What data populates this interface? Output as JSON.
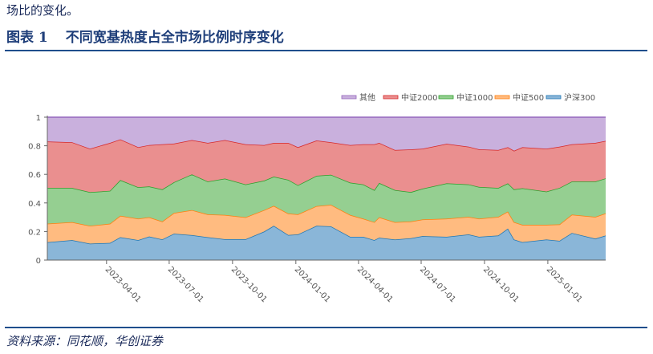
{
  "header": {
    "intro_text": "场比的变化。",
    "figure_label": "图表 1",
    "figure_title": "不同宽基热度占全市场比例时序变化"
  },
  "footer": {
    "source": "资料来源：同花顺，华创证券"
  },
  "chart_data": {
    "type": "area",
    "stacked": true,
    "title": "",
    "xlabel": "",
    "ylabel": "",
    "ylim": [
      0,
      1
    ],
    "yticks": [
      "0",
      "0.2",
      "0.4",
      "0.6",
      "0.8",
      "1"
    ],
    "xticks": [
      "2023-04-01",
      "2023-07-01",
      "2023-10-01",
      "2024-01-01",
      "2024-04-01",
      "2024-07-01",
      "2024-10-01",
      "2025-01-01"
    ],
    "xrange": [
      "2023-01-05",
      "2025-03-26"
    ],
    "legend_position": "top-right",
    "grid": false,
    "x": [
      "2023-01-05",
      "2023-02-10",
      "2023-03-08",
      "2023-04-06",
      "2023-04-21",
      "2023-05-17",
      "2023-06-02",
      "2023-06-21",
      "2023-07-08",
      "2023-08-03",
      "2023-08-26",
      "2023-09-20",
      "2023-10-20",
      "2023-11-16",
      "2023-11-30",
      "2023-12-21",
      "2024-01-04",
      "2024-01-31",
      "2024-02-21",
      "2024-03-20",
      "2024-04-08",
      "2024-04-24",
      "2024-05-01",
      "2024-05-24",
      "2024-06-16",
      "2024-07-03",
      "2024-08-07",
      "2024-09-08",
      "2024-09-23",
      "2024-10-21",
      "2024-11-04",
      "2024-11-13",
      "2024-11-25",
      "2024-12-30",
      "2025-01-18",
      "2025-02-05",
      "2025-03-11",
      "2025-03-26"
    ],
    "series": [
      {
        "name": "沪深300",
        "color": "#1f77b4",
        "fill": "#8ab6d8",
        "values": [
          0.125,
          0.14,
          0.115,
          0.12,
          0.16,
          0.14,
          0.165,
          0.145,
          0.185,
          0.175,
          0.16,
          0.146,
          0.146,
          0.2,
          0.24,
          0.176,
          0.18,
          0.24,
          0.236,
          0.163,
          0.163,
          0.14,
          0.157,
          0.144,
          0.153,
          0.168,
          0.163,
          0.18,
          0.163,
          0.172,
          0.22,
          0.144,
          0.126,
          0.144,
          0.135,
          0.19,
          0.15,
          0.172
        ]
      },
      {
        "name": "中证500",
        "color": "#ff7f0e",
        "fill": "#ffbb80",
        "values": [
          0.13,
          0.125,
          0.125,
          0.135,
          0.15,
          0.15,
          0.135,
          0.125,
          0.145,
          0.175,
          0.16,
          0.17,
          0.154,
          0.15,
          0.14,
          0.15,
          0.14,
          0.138,
          0.151,
          0.153,
          0.127,
          0.126,
          0.143,
          0.122,
          0.117,
          0.116,
          0.127,
          0.123,
          0.127,
          0.131,
          0.12,
          0.122,
          0.121,
          0.103,
          0.115,
          0.128,
          0.153,
          0.155
        ]
      },
      {
        "name": "中证1000",
        "color": "#2ca02c",
        "fill": "#95cf91",
        "values": [
          0.25,
          0.24,
          0.235,
          0.23,
          0.25,
          0.22,
          0.215,
          0.225,
          0.215,
          0.25,
          0.23,
          0.254,
          0.23,
          0.206,
          0.204,
          0.236,
          0.204,
          0.212,
          0.21,
          0.226,
          0.24,
          0.224,
          0.24,
          0.224,
          0.206,
          0.216,
          0.247,
          0.227,
          0.222,
          0.202,
          0.197,
          0.229,
          0.256,
          0.233,
          0.255,
          0.232,
          0.247,
          0.245
        ]
      },
      {
        "name": "中证2000",
        "color": "#d62728",
        "fill": "#ea8f8f",
        "values": [
          0.325,
          0.32,
          0.305,
          0.335,
          0.285,
          0.28,
          0.29,
          0.315,
          0.27,
          0.24,
          0.27,
          0.27,
          0.28,
          0.249,
          0.236,
          0.258,
          0.266,
          0.247,
          0.227,
          0.263,
          0.28,
          0.32,
          0.28,
          0.28,
          0.299,
          0.28,
          0.277,
          0.264,
          0.263,
          0.265,
          0.253,
          0.27,
          0.287,
          0.3,
          0.289,
          0.26,
          0.27,
          0.262
        ]
      },
      {
        "name": "其他",
        "color": "#9467bd",
        "fill": "#c9b0dd",
        "values": [
          0.17,
          0.175,
          0.22,
          0.18,
          0.155,
          0.21,
          0.195,
          0.19,
          0.185,
          0.16,
          0.18,
          0.16,
          0.19,
          0.195,
          0.18,
          0.18,
          0.21,
          0.163,
          0.176,
          0.195,
          0.19,
          0.19,
          0.18,
          0.23,
          0.225,
          0.22,
          0.186,
          0.206,
          0.225,
          0.23,
          0.21,
          0.235,
          0.21,
          0.22,
          0.206,
          0.19,
          0.18,
          0.166
        ]
      }
    ]
  }
}
